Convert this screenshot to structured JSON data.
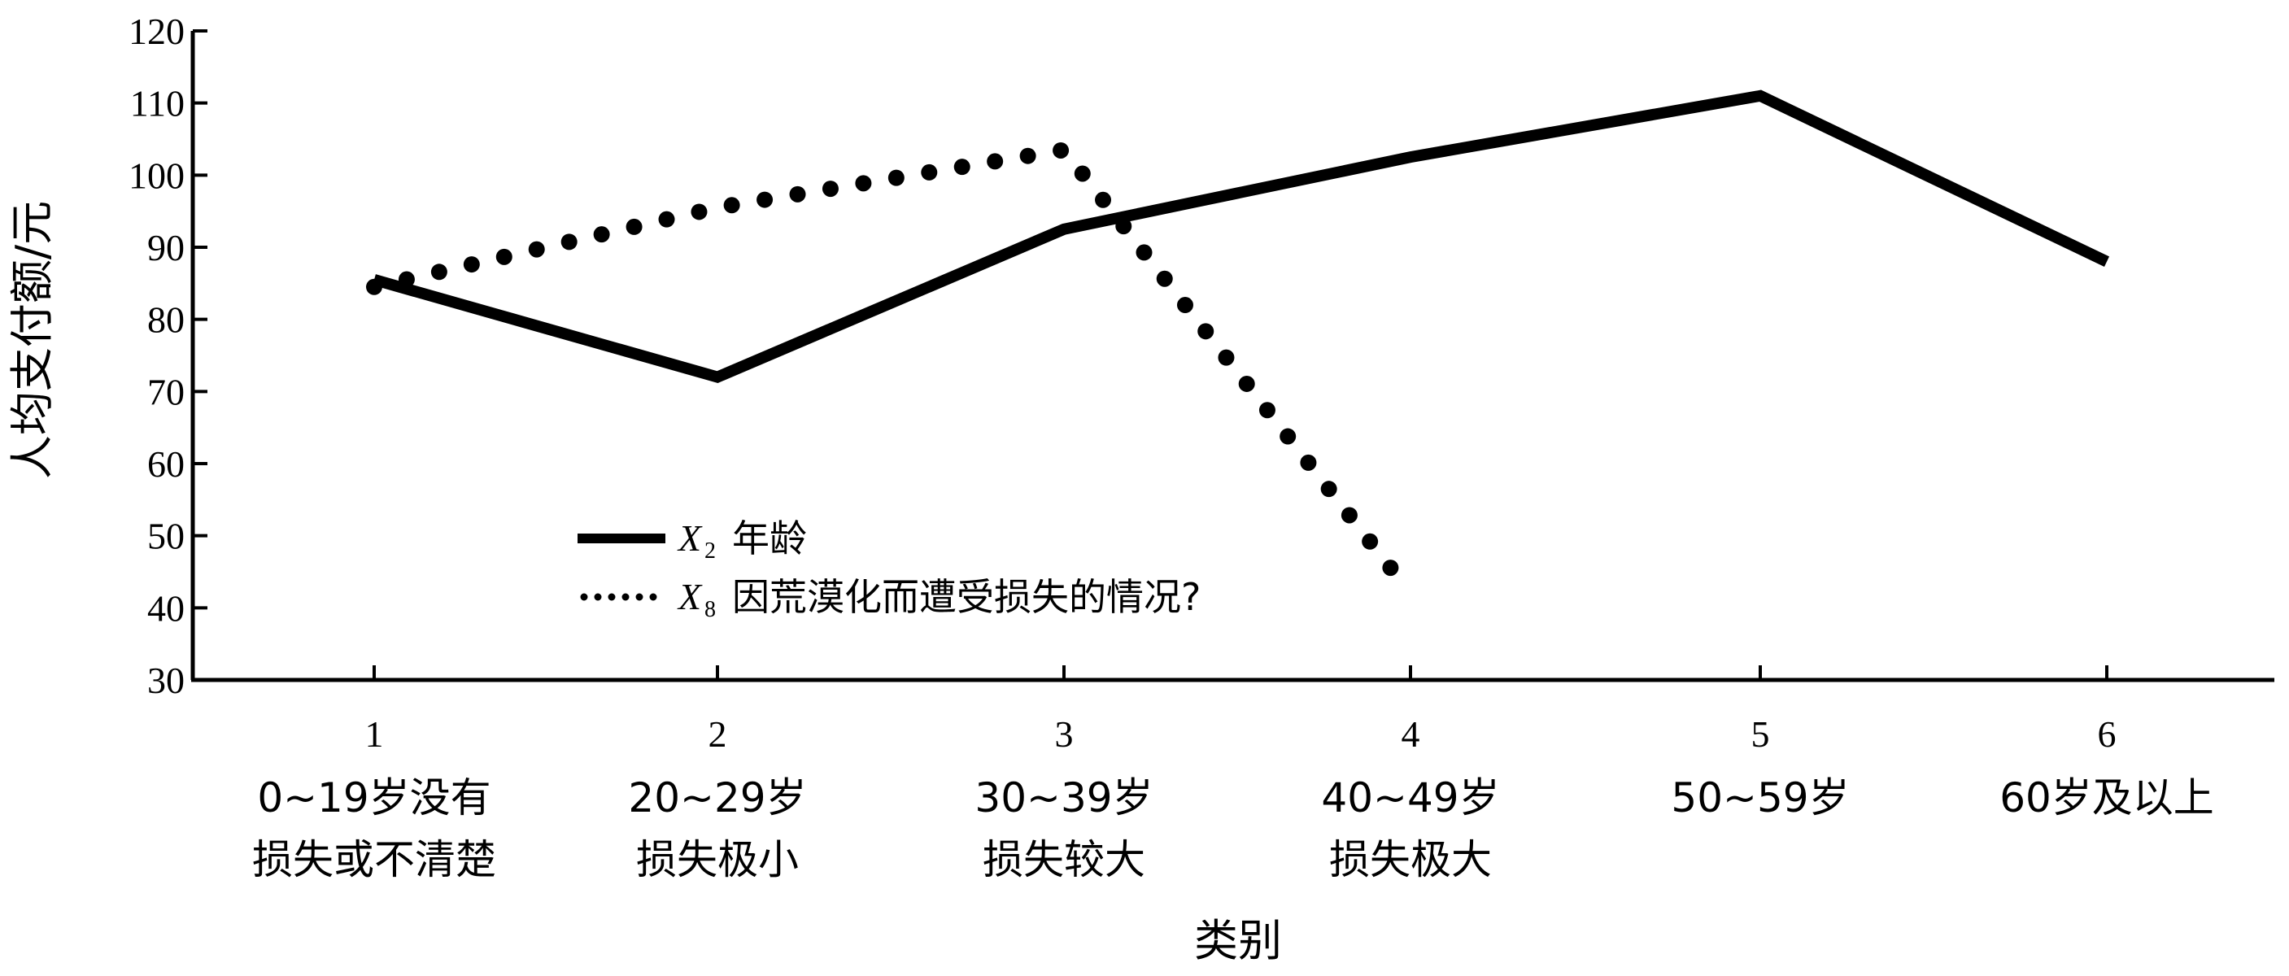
{
  "chart_data": {
    "type": "line",
    "xlabel": "类别",
    "ylabel": "人均支付额/元",
    "ylim": [
      30,
      120
    ],
    "yticks": [
      30,
      40,
      50,
      60,
      70,
      80,
      90,
      100,
      110,
      120
    ],
    "categories": [
      {
        "tick": "1",
        "lines": [
          "0~19岁没有",
          "损失或不清楚"
        ]
      },
      {
        "tick": "2",
        "lines": [
          "20~29岁",
          "损失极小"
        ]
      },
      {
        "tick": "3",
        "lines": [
          "30~39岁",
          "损失较大"
        ]
      },
      {
        "tick": "4",
        "lines": [
          "40~49岁",
          "损失极大"
        ]
      },
      {
        "tick": "5",
        "lines": [
          "50~59岁"
        ]
      },
      {
        "tick": "6",
        "lines": [
          "60岁及以上"
        ]
      }
    ],
    "series": [
      {
        "name": "年龄",
        "var": "X",
        "sub": "2",
        "style": "solid",
        "x": [
          1,
          2,
          3,
          4,
          5,
          6
        ],
        "values": [
          85.5,
          72,
          92.5,
          102.5,
          111,
          88
        ]
      },
      {
        "name": "因荒漠化而遭受损失的情况?",
        "var": "X",
        "sub": "8",
        "style": "dotted",
        "x": [
          1,
          2,
          3,
          4
        ],
        "values": [
          84.5,
          95.5,
          103.5,
          42
        ]
      }
    ],
    "legend": "center-left",
    "grid": false,
    "color": "#000000"
  }
}
